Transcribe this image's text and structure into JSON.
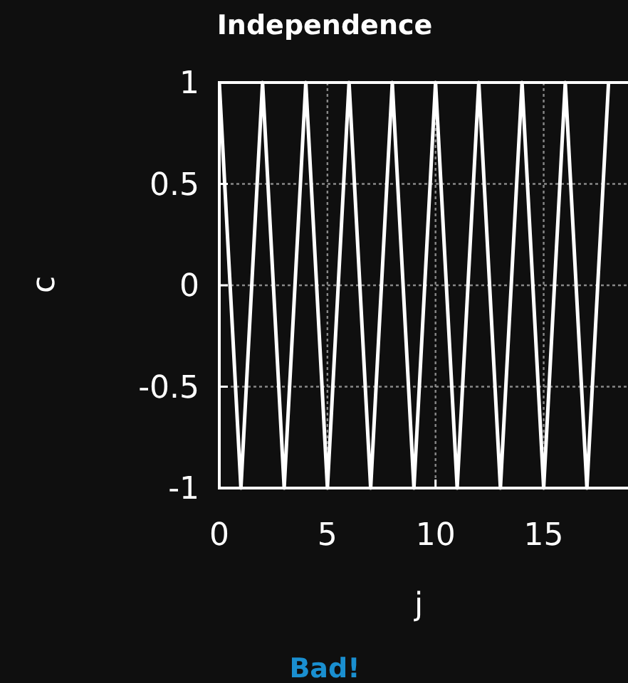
{
  "chart_data": {
    "type": "line",
    "title": "Independence",
    "xlabel": "j",
    "ylabel": "c",
    "annotations": [
      "Bad!"
    ],
    "x": [
      0,
      1,
      2,
      3,
      4,
      5,
      6,
      7,
      8,
      9,
      10,
      11,
      12,
      13,
      14,
      15,
      16,
      17,
      18
    ],
    "series": [
      {
        "color": "#ffffff",
        "values": [
          1,
          -1,
          1,
          -1,
          1,
          -1,
          1,
          -1,
          1,
          -1,
          1,
          -1,
          1,
          -1,
          1,
          -1,
          1,
          -1,
          1
        ]
      }
    ],
    "xlim": [
      0,
      18.9
    ],
    "xticks": [
      0,
      5,
      10,
      15
    ],
    "ylim": [
      -1,
      1
    ],
    "yticks": [
      -1,
      -0.5,
      0,
      0.5,
      1
    ],
    "grid": true,
    "marker": "none",
    "line_style": "solid"
  }
}
